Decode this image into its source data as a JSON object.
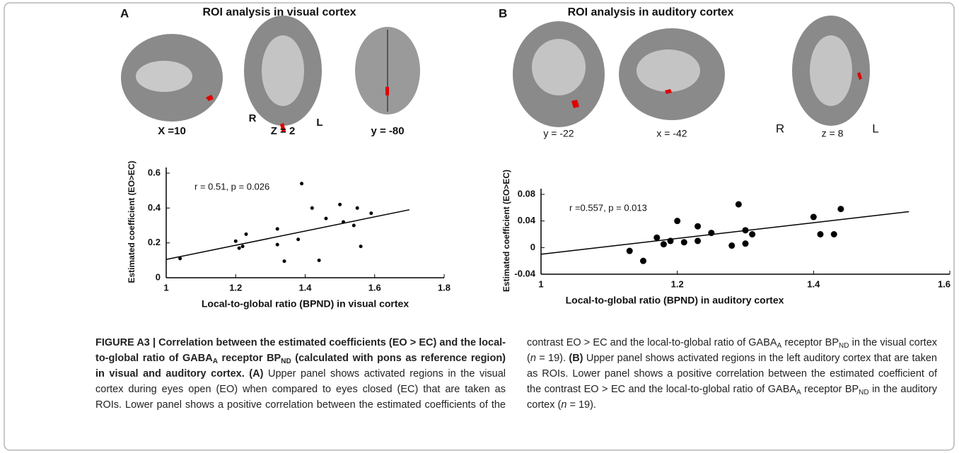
{
  "figure": {
    "panels": [
      {
        "label": "A",
        "title": "ROI analysis in visual cortex",
        "image_labels": [
          "X =10",
          "Z = 2",
          "y = -80",
          "R",
          "L"
        ]
      },
      {
        "label": "B",
        "title": "ROI analysis in auditory cortex",
        "image_labels": [
          "y = -22",
          "x = -42",
          "R",
          "z = 8",
          "L"
        ]
      }
    ],
    "caption": [
      {
        "text": "FIGURE A3 | Correlation between the estimated coefficients (EO > EC) and the local-to-global ratio of GABA",
        "style": "b"
      },
      {
        "text": "A",
        "style": "bs"
      },
      {
        "text": " receptor BP",
        "style": "b"
      },
      {
        "text": "ND",
        "style": "bs"
      },
      {
        "text": " (calculated with pons as reference region) in visual and auditory cortex. (A)",
        "style": "b"
      },
      {
        "text": " Upper panel shows activated regions in the visual cortex during eyes open (EO) when compared to eyes closed (EC) that are taken as ROIs. Lower panel shows a positive correlation between the estimated coefficients of the contrast EO > EC and the local-to-global ratio of GABA",
        "style": "n"
      },
      {
        "text": "A",
        "style": "s"
      },
      {
        "text": " receptor BP",
        "style": "n"
      },
      {
        "text": "ND",
        "style": "s"
      },
      {
        "text": " in the visual cortex (",
        "style": "n"
      },
      {
        "text": "n",
        "style": "i"
      },
      {
        "text": " = 19). ",
        "style": "n"
      },
      {
        "text": "(B)",
        "style": "b"
      },
      {
        "text": " Upper panel shows activated regions in the left auditory cortex that are taken as ROIs. Lower panel shows a positive correlation between the estimated coefficient of the contrast EO > EC and the local-to-global ratio of GABA",
        "style": "n"
      },
      {
        "text": "A",
        "style": "s"
      },
      {
        "text": " receptor BP",
        "style": "n"
      },
      {
        "text": "ND",
        "style": "s"
      },
      {
        "text": " in the auditory cortex (",
        "style": "n"
      },
      {
        "text": "n",
        "style": "i"
      },
      {
        "text": " = 19).",
        "style": "n"
      }
    ]
  },
  "chart_data": [
    {
      "type": "scatter",
      "xlabel": "Local-to-global ratio (BPND) in visual cortex",
      "ylabel": "Estimated coefficient (EO>EC)",
      "annotation": "r = 0.51, p = 0.026",
      "xlim": [
        1,
        1.8
      ],
      "ylim": [
        0,
        0.6
      ],
      "xticks": [
        1,
        1.2,
        1.4,
        1.6,
        1.8
      ],
      "yticks": [
        0,
        0.2,
        0.4,
        0.6
      ],
      "color": "#000000",
      "x": [
        1.04,
        1.2,
        1.21,
        1.22,
        1.23,
        1.32,
        1.32,
        1.34,
        1.38,
        1.39,
        1.42,
        1.44,
        1.46,
        1.5,
        1.51,
        1.54,
        1.55,
        1.56,
        1.59
      ],
      "values": [
        0.11,
        0.21,
        0.17,
        0.18,
        0.25,
        0.28,
        0.19,
        0.095,
        0.22,
        0.54,
        0.4,
        0.1,
        0.34,
        0.42,
        0.32,
        0.3,
        0.4,
        0.18,
        0.37
      ],
      "fit": {
        "x": [
          1,
          1.7
        ],
        "values": [
          0.105,
          0.39
        ]
      }
    },
    {
      "type": "scatter",
      "xlabel": "Local-to-global ratio (BPND) in auditory cortex",
      "ylabel": "Estimated coefficient (EO>EC)",
      "annotation": "r =0.557, p = 0.013",
      "xlim": [
        1,
        1.6
      ],
      "ylim": [
        -0.04,
        0.08
      ],
      "xticks": [
        1,
        1.2,
        1.4,
        1.6
      ],
      "yticks": [
        -0.04,
        0,
        0.04,
        0.08
      ],
      "color": "#000000",
      "x": [
        1.13,
        1.15,
        1.17,
        1.18,
        1.19,
        1.2,
        1.21,
        1.23,
        1.23,
        1.25,
        1.28,
        1.29,
        1.3,
        1.3,
        1.31,
        1.4,
        1.41,
        1.43,
        1.44
      ],
      "values": [
        -0.005,
        -0.02,
        0.015,
        0.005,
        0.01,
        0.04,
        0.008,
        0.032,
        0.01,
        0.022,
        0.003,
        0.065,
        0.026,
        0.006,
        0.02,
        0.046,
        0.02,
        0.02,
        0.058
      ],
      "fit": {
        "x": [
          1,
          1.54
        ],
        "values": [
          -0.01,
          0.054
        ]
      }
    }
  ]
}
